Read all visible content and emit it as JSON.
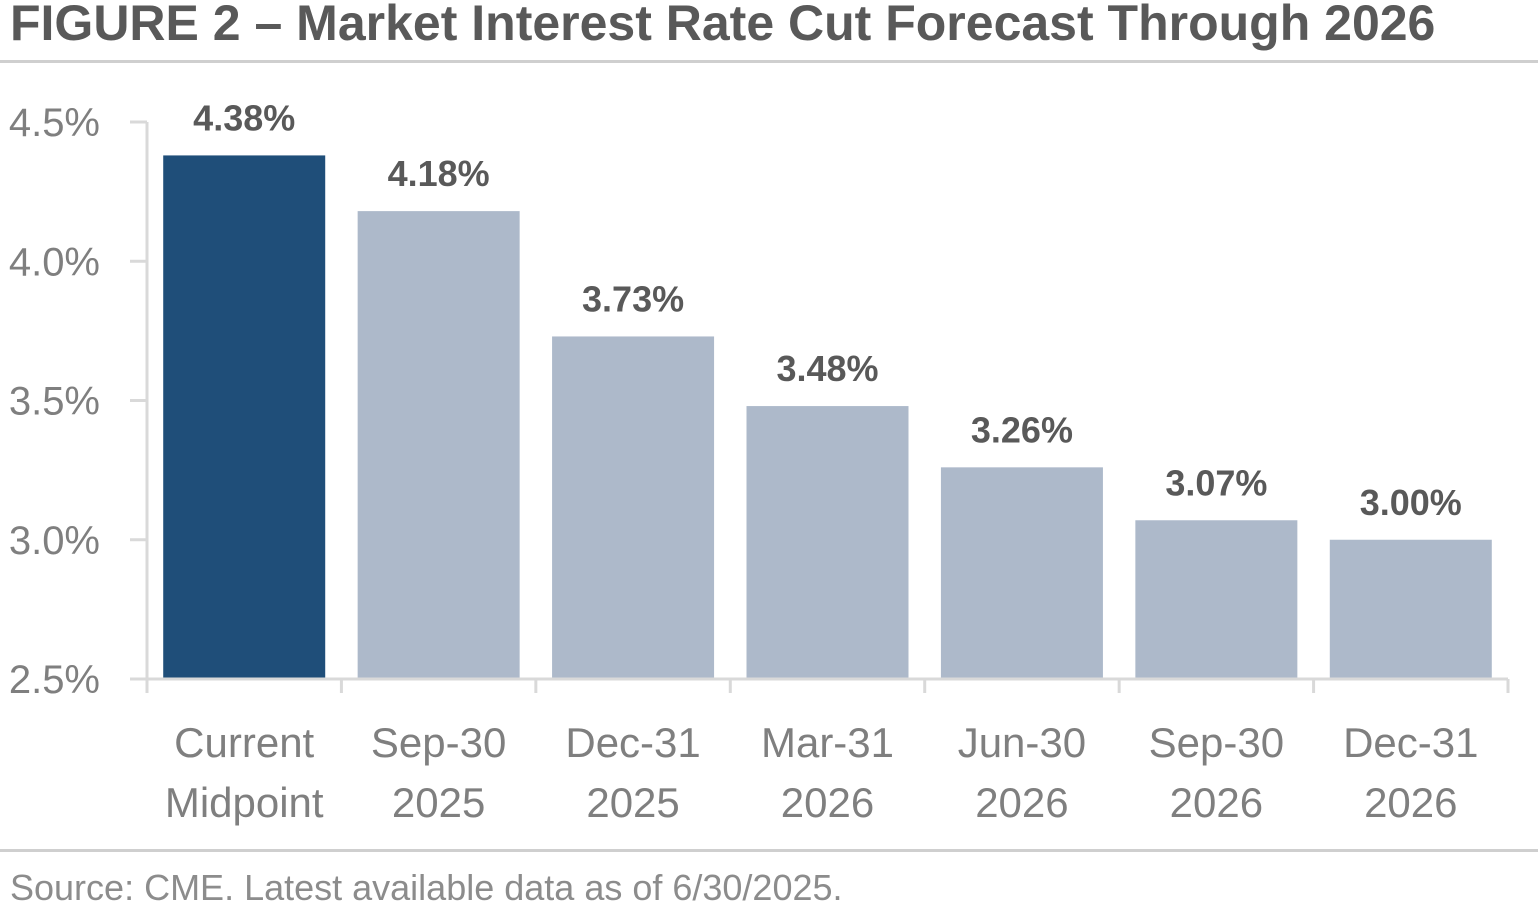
{
  "figure": {
    "title": "FIGURE 2 – Market Interest Rate Cut Forecast Through 2026",
    "source": "Source: CME. Latest available data as of 6/30/2025."
  },
  "colors": {
    "highlight_bar": "#1f4e79",
    "forecast_bar": "#adb9ca",
    "text": "#595959",
    "axis_text": "#7f7f7f",
    "axis_line": "#d9d9d9"
  },
  "chart_data": {
    "type": "bar",
    "categories": [
      [
        "Current",
        "Midpoint"
      ],
      [
        "Sep-30",
        "2025"
      ],
      [
        "Dec-31",
        "2025"
      ],
      [
        "Mar-31",
        "2026"
      ],
      [
        "Jun-30",
        "2026"
      ],
      [
        "Sep-30",
        "2026"
      ],
      [
        "Dec-31",
        "2026"
      ]
    ],
    "values": [
      4.38,
      4.18,
      3.73,
      3.48,
      3.26,
      3.07,
      3.0
    ],
    "data_labels": [
      "4.38%",
      "4.18%",
      "3.73%",
      "3.48%",
      "3.26%",
      "3.07%",
      "3.00%"
    ],
    "highlighted_index": 0,
    "ylim": [
      2.5,
      4.5
    ],
    "yticks": [
      2.5,
      3.0,
      3.5,
      4.0,
      4.5
    ],
    "ytick_labels": [
      "2.5%",
      "3.0%",
      "3.5%",
      "4.0%",
      "4.5%"
    ],
    "title": "",
    "xlabel": "",
    "ylabel": "",
    "grid": false,
    "legend": "none"
  }
}
